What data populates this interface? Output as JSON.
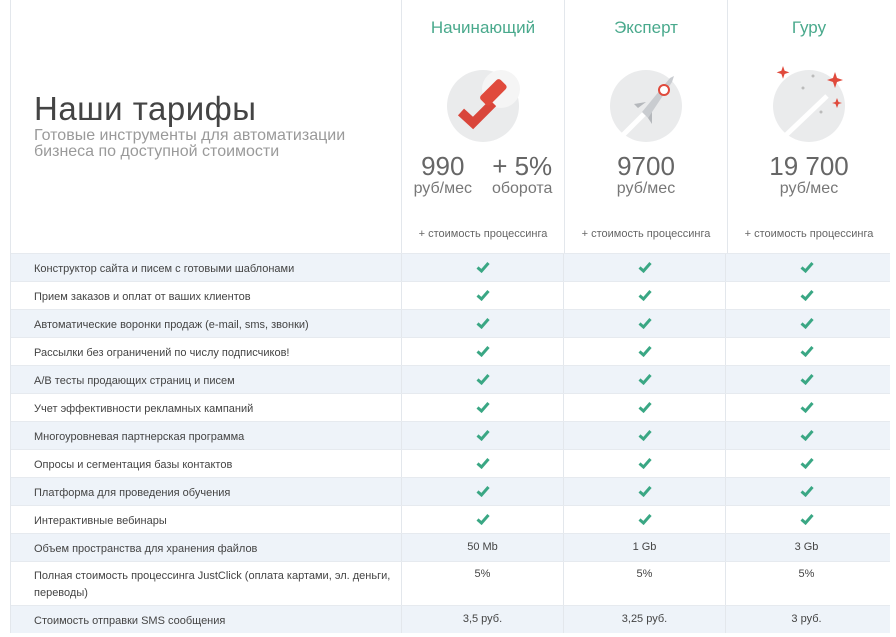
{
  "header": {
    "title": "Наши тарифы",
    "subtitle": "Готовые инструменты для автоматизации бизнеса по доступной стоимости"
  },
  "accent_color": "#49a98c",
  "check_color": "#3aa784",
  "plans": [
    {
      "name": "Начинающий",
      "icon": "checkmark-icon",
      "price": "990",
      "unit": "руб/мес",
      "extra_price": "+ 5%",
      "extra_unit": "оборота",
      "note": "+ стоимость процессинга"
    },
    {
      "name": "Эксперт",
      "icon": "rocket-icon",
      "price": "9700",
      "unit": "руб/мес",
      "note": "+ стоимость процессинга"
    },
    {
      "name": "Гуру",
      "icon": "stars-icon",
      "price": "19 700",
      "unit": "руб/мес",
      "note": "+ стоимость процессинга"
    }
  ],
  "features": [
    {
      "label": "Конструктор сайта и писем с готовыми шаблонами",
      "values": [
        "check",
        "check",
        "check"
      ]
    },
    {
      "label": "Прием заказов и оплат от ваших клиентов",
      "values": [
        "check",
        "check",
        "check"
      ]
    },
    {
      "label": "Автоматические воронки продаж (e-mail, sms, звонки)",
      "values": [
        "check",
        "check",
        "check"
      ]
    },
    {
      "label": "Рассылки без ограничений по числу подписчиков!",
      "values": [
        "check",
        "check",
        "check"
      ]
    },
    {
      "label": "A/B тесты продающих страниц и писем",
      "values": [
        "check",
        "check",
        "check"
      ]
    },
    {
      "label": "Учет эффективности рекламных кампаний",
      "values": [
        "check",
        "check",
        "check"
      ]
    },
    {
      "label": "Многоуровневая партнерская программа",
      "values": [
        "check",
        "check",
        "check"
      ]
    },
    {
      "label": "Опросы и сегментация базы контактов",
      "values": [
        "check",
        "check",
        "check"
      ]
    },
    {
      "label": "Платформа для проведения обучения",
      "values": [
        "check",
        "check",
        "check"
      ]
    },
    {
      "label": "Интерактивные вебинары",
      "values": [
        "check",
        "check",
        "check"
      ]
    },
    {
      "label": "Объем пространства для хранения файлов",
      "values": [
        "50 Mb",
        "1 Gb",
        "3 Gb"
      ]
    },
    {
      "label": "Полная стоимость процессинга JustClick (оплата картами, эл. деньги, переводы)",
      "values": [
        "5%",
        "5%",
        "5%"
      ]
    },
    {
      "label": "Стоимость отправки SMS сообщения",
      "values": [
        "3,5 руб.",
        "3,25 руб.",
        "3 руб."
      ]
    }
  ]
}
